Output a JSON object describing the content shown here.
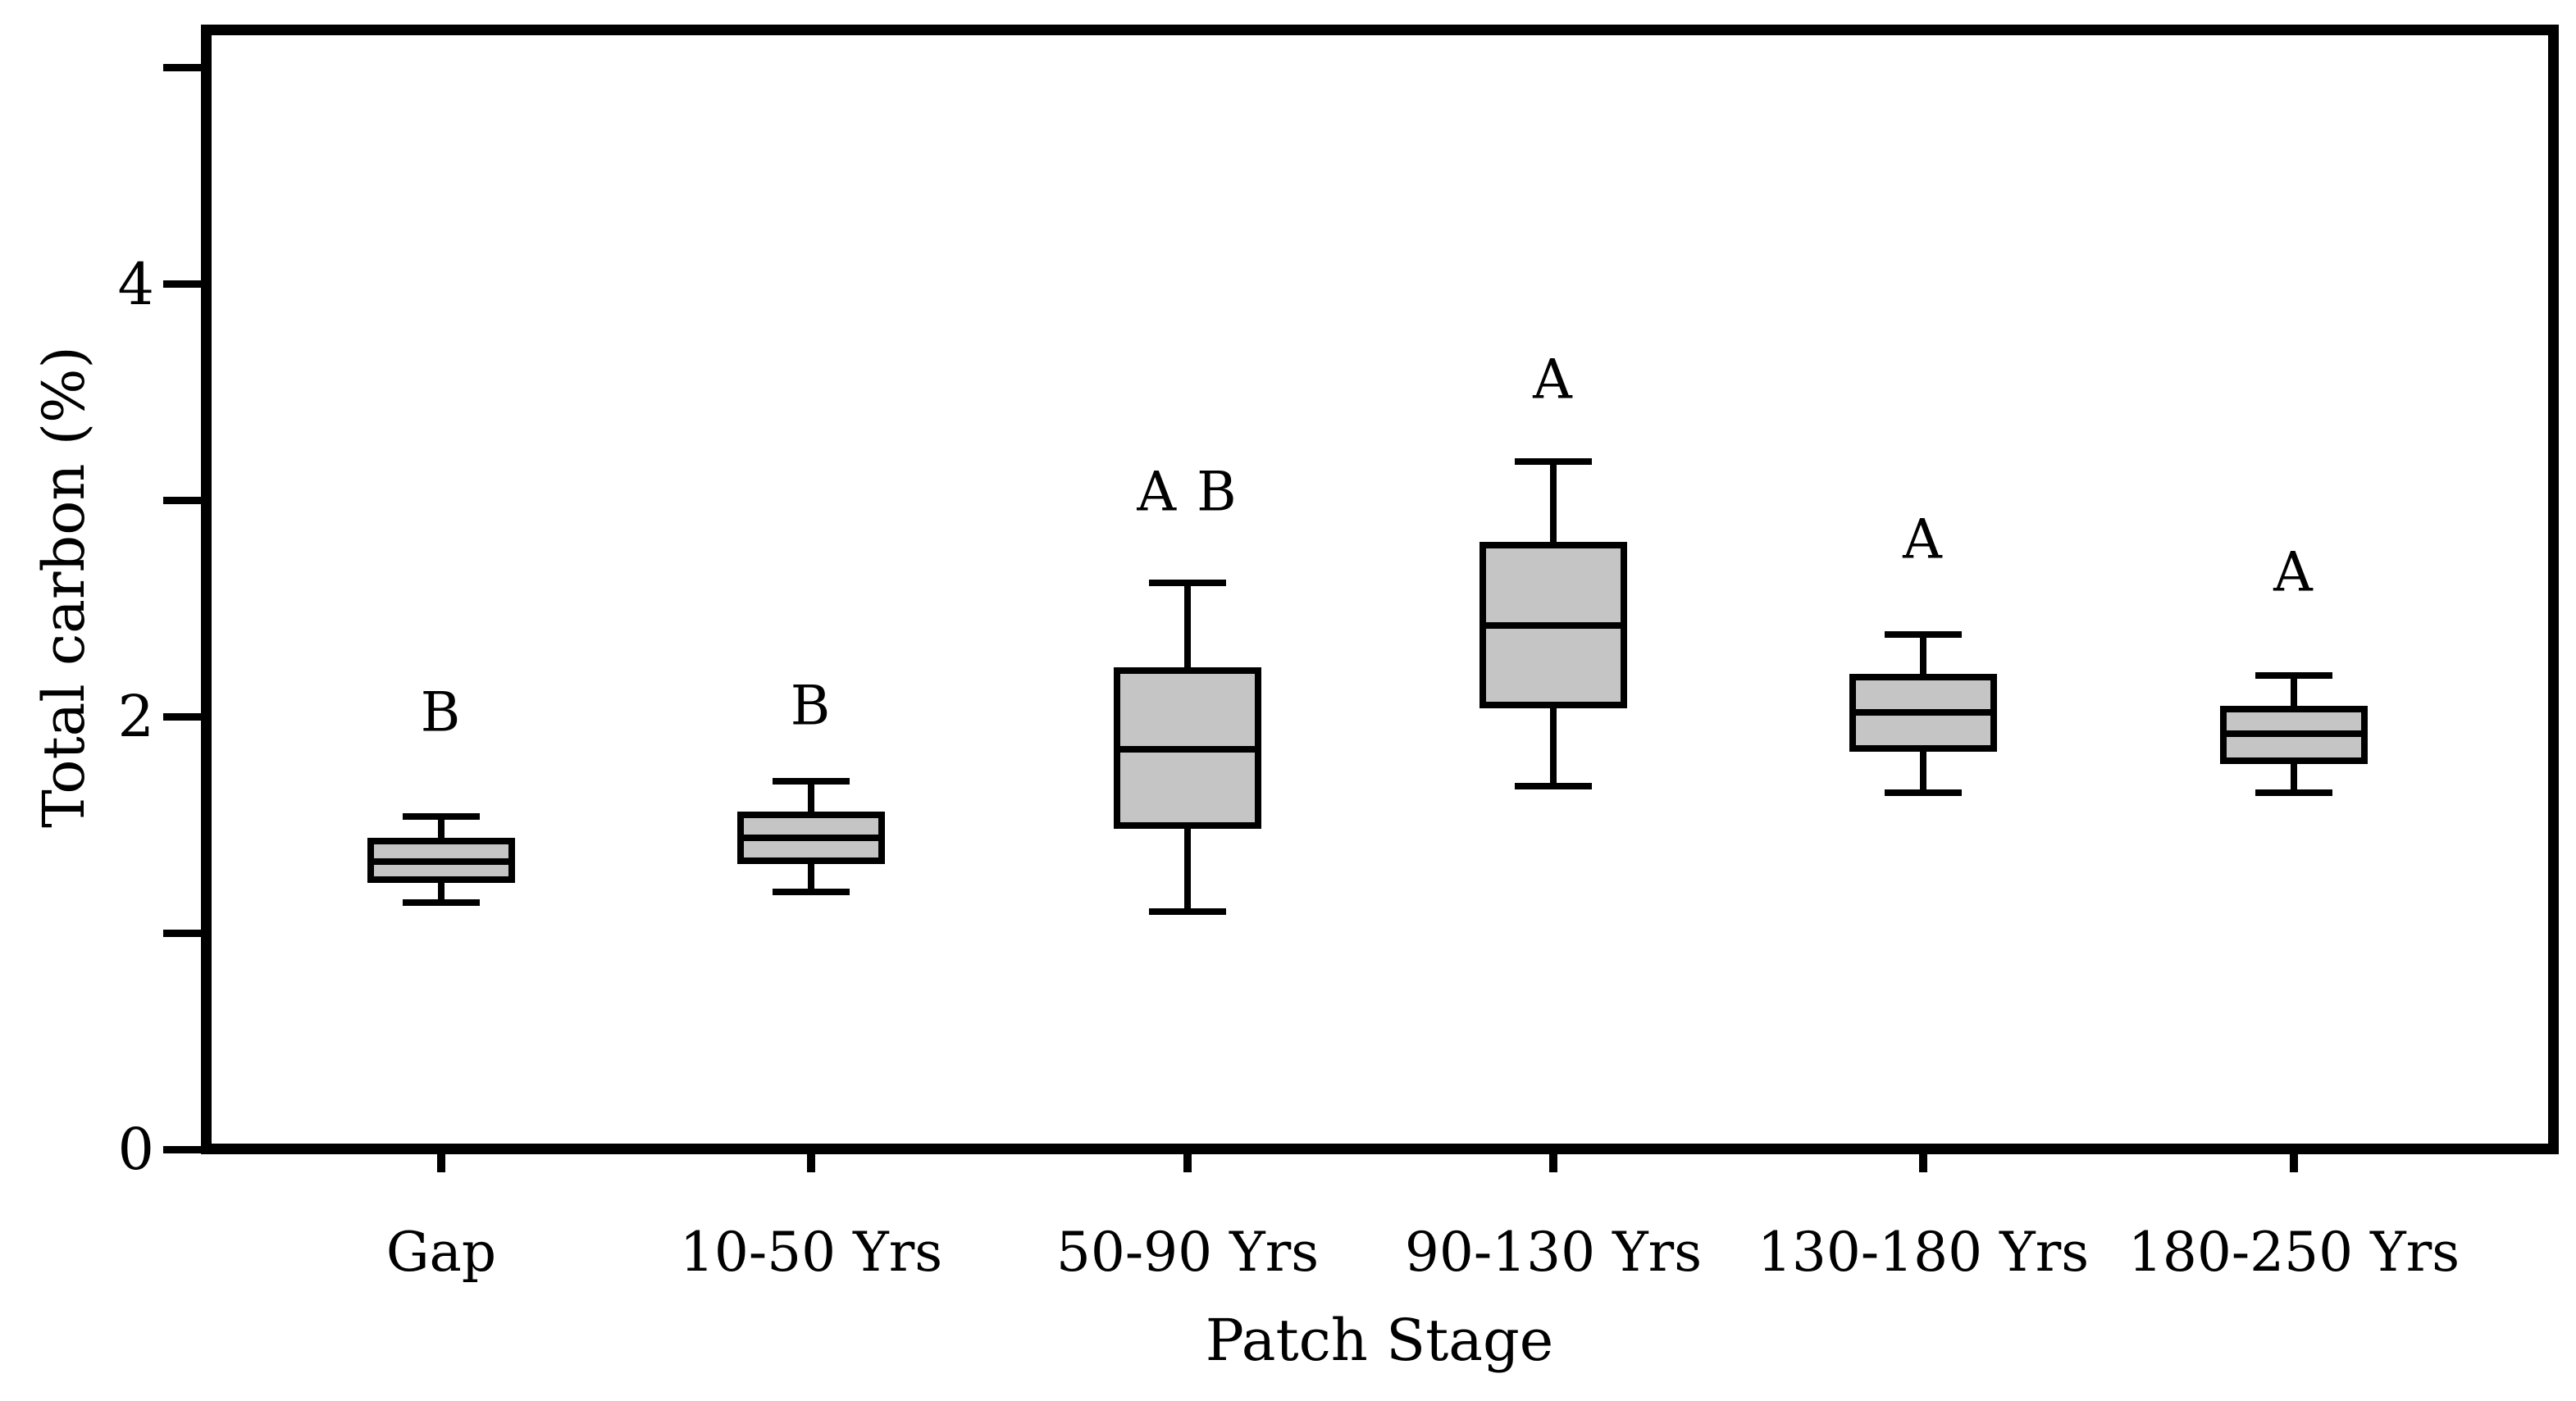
{
  "figure": {
    "background_color": "#ffffff",
    "frame_color": "#000000"
  },
  "chart_data": {
    "type": "boxplot",
    "title": "",
    "xlabel": "Patch Stage",
    "ylabel": "Total carbon (%)",
    "ylim": [
      0,
      5.2
    ],
    "y_ticks_labeled": [
      0,
      2,
      4
    ],
    "y_ticks_minor": [
      1,
      3,
      5
    ],
    "grid": false,
    "legend": "none",
    "box_fill_color": "#c5c5c5",
    "line_color": "#000000",
    "categories": [
      "Gap",
      "10-50 Yrs",
      "50-90 Yrs",
      "90-130 Yrs",
      "130-180 Yrs",
      "180-250 Yrs"
    ],
    "boxes": [
      {
        "category": "Gap",
        "whisker_low": 1.14,
        "q1": 1.23,
        "median": 1.33,
        "q3": 1.44,
        "whisker_high": 1.54,
        "sig_letter": "B",
        "letter_value": 2.02
      },
      {
        "category": "10-50 Yrs",
        "whisker_low": 1.19,
        "q1": 1.32,
        "median": 1.44,
        "q3": 1.56,
        "whisker_high": 1.7,
        "sig_letter": "B",
        "letter_value": 2.05
      },
      {
        "category": "50-90 Yrs",
        "whisker_low": 1.1,
        "q1": 1.48,
        "median": 1.85,
        "q3": 2.23,
        "whisker_high": 2.62,
        "sig_letter": "A B",
        "letter_value": 3.04
      },
      {
        "category": "90-130 Yrs",
        "whisker_low": 1.68,
        "q1": 2.04,
        "median": 2.42,
        "q3": 2.81,
        "whisker_high": 3.18,
        "sig_letter": "A",
        "letter_value": 3.56
      },
      {
        "category": "130-180 Yrs",
        "whisker_low": 1.65,
        "q1": 1.84,
        "median": 2.02,
        "q3": 2.2,
        "whisker_high": 2.38,
        "sig_letter": "A",
        "letter_value": 2.82
      },
      {
        "category": "180-250 Yrs",
        "whisker_low": 1.65,
        "q1": 1.78,
        "median": 1.92,
        "q3": 2.05,
        "whisker_high": 2.19,
        "sig_letter": "A",
        "letter_value": 2.67
      }
    ]
  }
}
